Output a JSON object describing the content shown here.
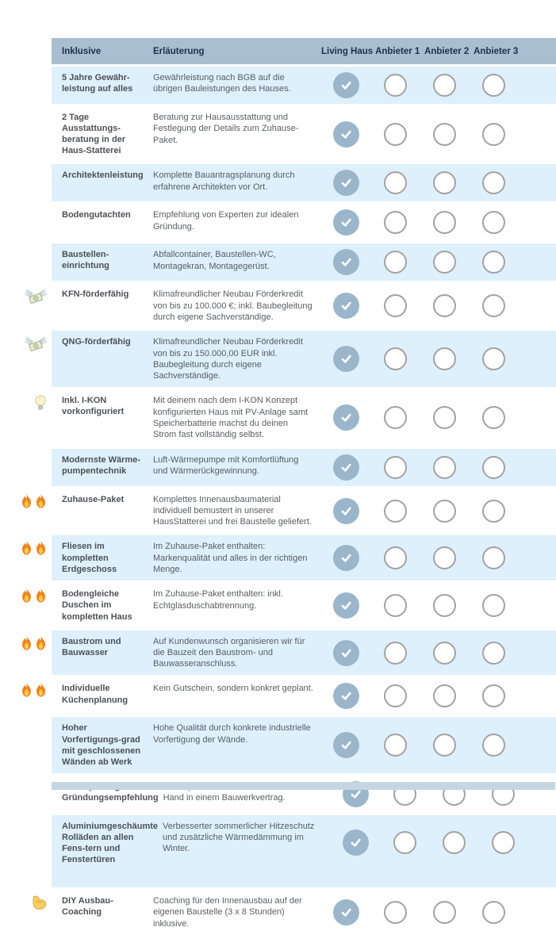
{
  "colors": {
    "header_bg": "#a8bed1",
    "header_text": "#22304d",
    "row_alt_bg": "#def0fb",
    "label_text": "#4d5156",
    "desc_text": "#595d62",
    "check_fill": "#9bb6ca",
    "check_mark": "#ffffff",
    "circle_border": "#a2a2a2",
    "footer_bg": "#c5d6e2",
    "page_bg": "#ffffff"
  },
  "table": {
    "header": {
      "feature": "Inklusive",
      "description": "Erläuterung",
      "providers": [
        "Living Haus",
        "Anbieter 1",
        "Anbieter 2",
        "Anbieter 3"
      ]
    },
    "rows": [
      {
        "label": "5 Jahre Gewähr-leistung auf alles",
        "desc": "Gewährleistung nach BGB auf die übrigen Bauleistungen des Hauses.",
        "icons": [],
        "checks": [
          true,
          false,
          false,
          false
        ]
      },
      {
        "label": "2 Tage Ausstattungs-beratung in der Haus-Statterei",
        "desc": "Beratung zur Hausausstattung und Festlegung der Details zum Zuhause-Paket.",
        "icons": [],
        "checks": [
          true,
          false,
          false,
          false
        ]
      },
      {
        "label": "Architektenleistung",
        "desc": "Komplette Bauantragsplanung durch erfahrene Architekten vor Ort.",
        "icons": [],
        "checks": [
          true,
          false,
          false,
          false
        ]
      },
      {
        "label": "Bodengutachten",
        "desc": "Empfehlung von Experten zur idealen Gründung.",
        "icons": [],
        "checks": [
          true,
          false,
          false,
          false
        ]
      },
      {
        "label": "Baustellen-einrichtung",
        "desc": "Abfallcontainer, Baustellen-WC, Montagekran, Montagegerüst.",
        "icons": [],
        "checks": [
          true,
          false,
          false,
          false
        ]
      },
      {
        "label": "KFN-förderfähig",
        "desc": "Klimafreundlicher Neubau Förderkredit von bis zu 100.000 €; inkl. Baubegleitung durch eigene Sachverständige.",
        "icons": [
          "money-wings"
        ],
        "checks": [
          true,
          false,
          false,
          false
        ]
      },
      {
        "label": "QNG-förderfähig",
        "desc": "Klimafreundlicher Neubau Förderkredit von bis zu 150.000,00 EUR inkl. Baubegleitung durch eigene Sachverständige.",
        "icons": [
          "money-wings"
        ],
        "checks": [
          true,
          false,
          false,
          false
        ]
      },
      {
        "label": "Inkl. I-KON vorkonfiguriert",
        "desc": "Mit deinem nach dem I-KON Konzept konfigurierten Haus mit PV-Anlage samt Speicherbatterie machst du deinen Strom fast vollständig selbst.",
        "icons": [
          "bulb"
        ],
        "checks": [
          true,
          false,
          false,
          false
        ]
      },
      {
        "label": "Modernste Wärme-pumpentechnik",
        "desc": "Luft-Wärmepumpe mit Komfortlüftung und Wärmerückgewinnung.",
        "icons": [],
        "checks": [
          true,
          false,
          false,
          false
        ]
      },
      {
        "label": "Zuhause-Paket",
        "desc": "Komplettes Innenausbaumaterial individuell bemustert in unserer HausStatterei und frei Baustelle geliefert.",
        "icons": [
          "fire",
          "fire"
        ],
        "checks": [
          true,
          false,
          false,
          false
        ]
      },
      {
        "label": "Fliesen im kompletten Erdgeschoss",
        "desc": "Im Zuhause-Paket enthalten: Markenqualität und alles in der richtigen Menge.",
        "icons": [
          "fire",
          "fire"
        ],
        "checks": [
          true,
          false,
          false,
          false
        ]
      },
      {
        "label": "Bodengleiche Duschen im kompletten Haus",
        "desc": "Im Zuhause-Paket enthalten: inkl. Echtglasduschabtrennung.",
        "icons": [
          "fire",
          "fire"
        ],
        "checks": [
          true,
          false,
          false,
          false
        ]
      },
      {
        "label": "Baustrom und Bauwasser",
        "desc": "Auf Kundenwunsch organisieren wir für die Bauzeit den Baustrom- und Bauwasseranschluss.",
        "icons": [
          "fire",
          "fire"
        ],
        "checks": [
          true,
          false,
          false,
          false
        ]
      },
      {
        "label": "Individuelle Küchenplanung",
        "desc": "Kein Gutschein, sondern konkret geplant.",
        "icons": [
          "fire",
          "fire"
        ],
        "checks": [
          true,
          false,
          false,
          false
        ]
      },
      {
        "label": "Hoher Vorfertigungs-grad mit geschlossenen Wänden ab Werk",
        "desc": "Hohe Qualität durch konkrete industrielle Vorfertigung der Wände.",
        "icons": [],
        "checks": [
          true,
          false,
          false,
          false
        ]
      },
      {
        "label": "Bodenplatte gem. Gründungsempfehlung",
        "desc": "Bodenplatte oder Keller alles aus einer Hand in einem Bauwerkvertrag.",
        "icons": [],
        "checks": [
          true,
          false,
          false,
          false
        ]
      },
      {
        "label": "Aluminiumgeschäumte Rolläden an allen Fens-tern und Fenstertüren",
        "desc": "Verbesserter sommerlicher Hitzeschutz und zusätzliche Wärmedämmung im Winter.",
        "icons": [],
        "tall": true,
        "checks": [
          true,
          false,
          false,
          false
        ]
      },
      {
        "label": "DIY Ausbau-Coaching",
        "desc": "Coaching für den Innenausbau auf der eigenen Baustelle (3 x 8 Stunden) inklusive.",
        "icons": [
          "muscle"
        ],
        "checks": [
          true,
          false,
          false,
          false
        ]
      }
    ]
  }
}
